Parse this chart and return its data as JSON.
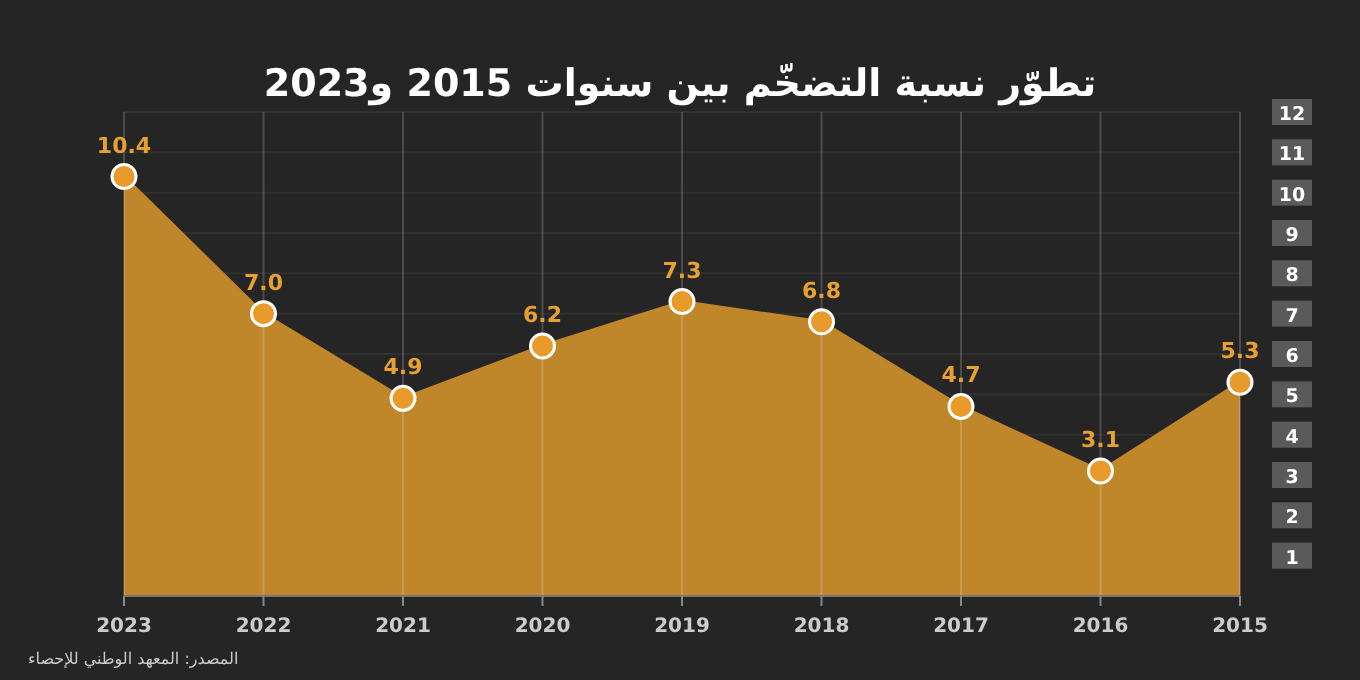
{
  "chart_data": {
    "type": "area",
    "title": "تطوّر نسبة التضخّم بين سنوات 2015 و2023",
    "categories": [
      "2023",
      "2022",
      "2021",
      "2020",
      "2019",
      "2018",
      "2017",
      "2016",
      "2015"
    ],
    "series": [
      {
        "color": "#c0862a",
        "values": [
          10.4,
          7.0,
          4.9,
          6.2,
          7.3,
          6.8,
          4.7,
          3.1,
          5.3
        ],
        "value_labels": [
          "10.4",
          "7.0",
          "4.9",
          "6.2",
          "7.3",
          "6.8",
          "4.7",
          "3.1",
          "5.3"
        ]
      }
    ],
    "ylim": [
      0,
      12
    ],
    "yticks": [
      1,
      2,
      3,
      4,
      5,
      6,
      7,
      8,
      9,
      10,
      11,
      12
    ],
    "grid": true,
    "marker": "circle",
    "annotations": [
      "المصدر: المعهد الوطني للإحصاء"
    ]
  }
}
